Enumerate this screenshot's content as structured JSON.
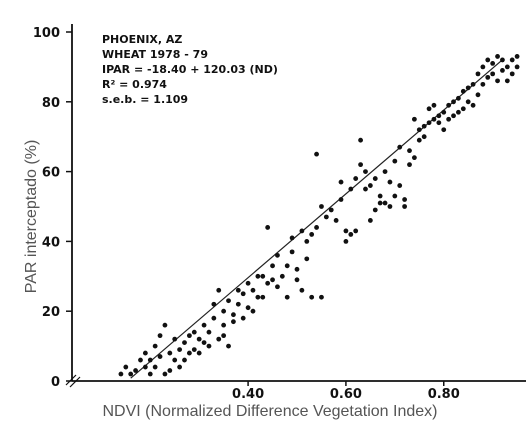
{
  "chart_data": {
    "type": "scatter",
    "title": "",
    "xlabel": "NDVI (Normalized Difference Vegetation Index)",
    "ylabel": "PAR interceptado (%)",
    "xlim": [
      0.04,
      0.96
    ],
    "ylim": [
      0,
      100
    ],
    "grid": false,
    "x_ticks": [
      {
        "value": 0.4,
        "label": "0.40"
      },
      {
        "value": 0.6,
        "label": "0.60"
      },
      {
        "value": 0.8,
        "label": "0.80"
      }
    ],
    "y_ticks": [
      {
        "value": 0,
        "label": "0"
      },
      {
        "value": 20,
        "label": "20"
      },
      {
        "value": 40,
        "label": "40"
      },
      {
        "value": 60,
        "label": "60"
      },
      {
        "value": 80,
        "label": "80"
      },
      {
        "value": 100,
        "label": "100"
      }
    ],
    "annotations": [
      "PHOENIX, AZ",
      "WHEAT   1978 - 79",
      "IPAR = -18.40 + 120.03 (ND)",
      "R² = 0.974",
      "s.e.b. = 1.109"
    ],
    "regression": {
      "intercept": -18.4,
      "slope": 120.03,
      "x_range": [
        0.16,
        0.92
      ]
    },
    "series": [
      {
        "points": [
          [
            0.14,
            2
          ],
          [
            0.15,
            4
          ],
          [
            0.16,
            2
          ],
          [
            0.17,
            3
          ],
          [
            0.18,
            6
          ],
          [
            0.19,
            4
          ],
          [
            0.19,
            8
          ],
          [
            0.2,
            6
          ],
          [
            0.2,
            2
          ],
          [
            0.21,
            10
          ],
          [
            0.21,
            4
          ],
          [
            0.22,
            7
          ],
          [
            0.22,
            13
          ],
          [
            0.23,
            16
          ],
          [
            0.23,
            2
          ],
          [
            0.24,
            8
          ],
          [
            0.24,
            3
          ],
          [
            0.25,
            6
          ],
          [
            0.25,
            12
          ],
          [
            0.26,
            4
          ],
          [
            0.26,
            9
          ],
          [
            0.27,
            11
          ],
          [
            0.27,
            6
          ],
          [
            0.28,
            8
          ],
          [
            0.28,
            13
          ],
          [
            0.29,
            14
          ],
          [
            0.29,
            9
          ],
          [
            0.3,
            12
          ],
          [
            0.3,
            8
          ],
          [
            0.31,
            16
          ],
          [
            0.31,
            11
          ],
          [
            0.32,
            10
          ],
          [
            0.32,
            14
          ],
          [
            0.33,
            22
          ],
          [
            0.33,
            18
          ],
          [
            0.34,
            26
          ],
          [
            0.34,
            12
          ],
          [
            0.35,
            16
          ],
          [
            0.35,
            20
          ],
          [
            0.35,
            13
          ],
          [
            0.36,
            23
          ],
          [
            0.36,
            10
          ],
          [
            0.37,
            19
          ],
          [
            0.37,
            17
          ],
          [
            0.38,
            26
          ],
          [
            0.38,
            22
          ],
          [
            0.39,
            25
          ],
          [
            0.39,
            18
          ],
          [
            0.4,
            21
          ],
          [
            0.4,
            28
          ],
          [
            0.41,
            20
          ],
          [
            0.41,
            26
          ],
          [
            0.42,
            30
          ],
          [
            0.42,
            24
          ],
          [
            0.43,
            24
          ],
          [
            0.43,
            30
          ],
          [
            0.44,
            44
          ],
          [
            0.44,
            28
          ],
          [
            0.45,
            29
          ],
          [
            0.45,
            33
          ],
          [
            0.46,
            36
          ],
          [
            0.46,
            27
          ],
          [
            0.47,
            30
          ],
          [
            0.48,
            33
          ],
          [
            0.48,
            24
          ],
          [
            0.49,
            41
          ],
          [
            0.49,
            37
          ],
          [
            0.5,
            32
          ],
          [
            0.5,
            29
          ],
          [
            0.51,
            43
          ],
          [
            0.51,
            26
          ],
          [
            0.52,
            35
          ],
          [
            0.52,
            40
          ],
          [
            0.53,
            24
          ],
          [
            0.53,
            42
          ],
          [
            0.54,
            44
          ],
          [
            0.54,
            65
          ],
          [
            0.55,
            50
          ],
          [
            0.55,
            24
          ],
          [
            0.56,
            47
          ],
          [
            0.57,
            49
          ],
          [
            0.58,
            46
          ],
          [
            0.59,
            52
          ],
          [
            0.59,
            57
          ],
          [
            0.6,
            43
          ],
          [
            0.6,
            40
          ],
          [
            0.61,
            42
          ],
          [
            0.61,
            55
          ],
          [
            0.62,
            43
          ],
          [
            0.62,
            58
          ],
          [
            0.63,
            69
          ],
          [
            0.63,
            62
          ],
          [
            0.64,
            60
          ],
          [
            0.64,
            55
          ],
          [
            0.65,
            46
          ],
          [
            0.65,
            56
          ],
          [
            0.66,
            49
          ],
          [
            0.66,
            58
          ],
          [
            0.67,
            51
          ],
          [
            0.67,
            53
          ],
          [
            0.68,
            51
          ],
          [
            0.68,
            60
          ],
          [
            0.69,
            50
          ],
          [
            0.69,
            57
          ],
          [
            0.7,
            53
          ],
          [
            0.7,
            63
          ],
          [
            0.71,
            56
          ],
          [
            0.71,
            67
          ],
          [
            0.72,
            52
          ],
          [
            0.72,
            50
          ],
          [
            0.73,
            62
          ],
          [
            0.73,
            66
          ],
          [
            0.74,
            75
          ],
          [
            0.74,
            64
          ],
          [
            0.75,
            69
          ],
          [
            0.75,
            72
          ],
          [
            0.76,
            70
          ],
          [
            0.76,
            73
          ],
          [
            0.77,
            74
          ],
          [
            0.77,
            78
          ],
          [
            0.78,
            75
          ],
          [
            0.78,
            79
          ],
          [
            0.79,
            76
          ],
          [
            0.79,
            74
          ],
          [
            0.8,
            77
          ],
          [
            0.8,
            72
          ],
          [
            0.81,
            75
          ],
          [
            0.81,
            79
          ],
          [
            0.82,
            80
          ],
          [
            0.82,
            76
          ],
          [
            0.83,
            81
          ],
          [
            0.83,
            77
          ],
          [
            0.84,
            78
          ],
          [
            0.84,
            83
          ],
          [
            0.85,
            80
          ],
          [
            0.85,
            84
          ],
          [
            0.86,
            79
          ],
          [
            0.86,
            85
          ],
          [
            0.87,
            82
          ],
          [
            0.87,
            88
          ],
          [
            0.88,
            85
          ],
          [
            0.88,
            90
          ],
          [
            0.89,
            87
          ],
          [
            0.89,
            92
          ],
          [
            0.9,
            88
          ],
          [
            0.9,
            91
          ],
          [
            0.91,
            93
          ],
          [
            0.91,
            86
          ],
          [
            0.92,
            89
          ],
          [
            0.92,
            92
          ],
          [
            0.93,
            90
          ],
          [
            0.93,
            86
          ],
          [
            0.94,
            92
          ],
          [
            0.94,
            88
          ],
          [
            0.95,
            93
          ],
          [
            0.95,
            90
          ]
        ]
      }
    ]
  }
}
